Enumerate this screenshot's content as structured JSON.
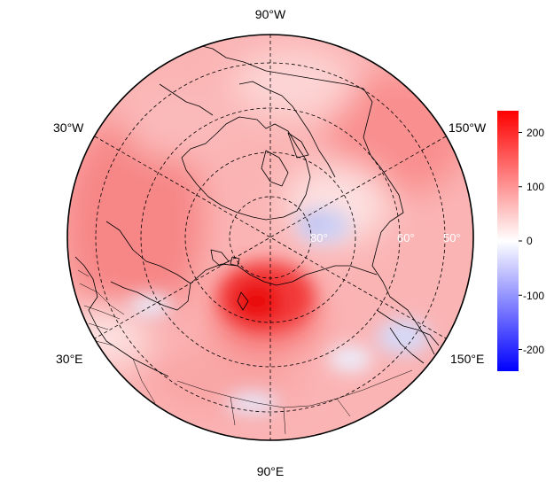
{
  "projection": "north-polar-stereographic",
  "longitude_labels": {
    "top": "90°W",
    "upper_left": "30°W",
    "upper_right": "150°W",
    "lower_left": "30°E",
    "lower_right": "150°E",
    "bottom": "90°E"
  },
  "latitude_labels": [
    "80°",
    "60°",
    "50°"
  ],
  "colorbar": {
    "colormap": "blue-white-red",
    "min": -240,
    "max": 240,
    "ticks": [
      "200",
      "100",
      "0",
      "-100",
      "-200"
    ],
    "colors": {
      "high": "#ff0000",
      "mid": "#ffffff",
      "low": "#0000ff"
    }
  },
  "anomaly_centers": [
    {
      "region": "Central Siberia",
      "sign": "positive",
      "strength": "strong"
    },
    {
      "region": "Beaufort Sea",
      "sign": "negative",
      "strength": "weak"
    },
    {
      "region": "Bering Sea",
      "sign": "negative",
      "strength": "weak"
    },
    {
      "region": "Mongolia",
      "sign": "negative",
      "strength": "weak"
    }
  ]
}
